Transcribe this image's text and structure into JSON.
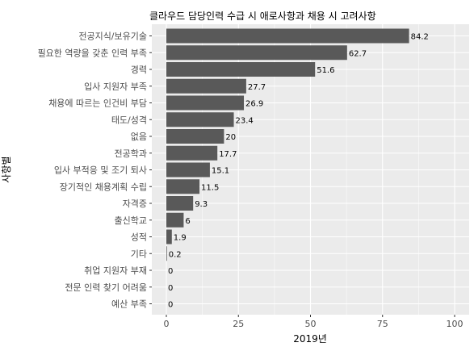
{
  "chart_data": {
    "type": "bar",
    "orientation": "horizontal",
    "title": "클라우드 담당인력 수급 시 애로사항과 채용 시 고려사항",
    "xlabel": "2019년",
    "ylabel": "사항별",
    "xlim": [
      0,
      100
    ],
    "xticks": [
      0,
      25,
      50,
      75,
      100
    ],
    "grid": true,
    "colors": {
      "bar": "#595959",
      "panel": "#ebebeb",
      "grid": "#ffffff"
    },
    "categories": [
      "전공지식/보유기술",
      "필요한 역량을 갖춘 인력 부족",
      "경력",
      "입사 지원자 부족",
      "채용에 따르는 인건비 부담",
      "태도/성격",
      "없음",
      "전공학과",
      "입사 부적응 및 조기 퇴사",
      "장기적인 채용계획 수립",
      "자격증",
      "출신학교",
      "성적",
      "기타",
      "취업 지원자 부재",
      "전문 인력 찾기 어려움",
      "예산 부족"
    ],
    "values": [
      84.2,
      62.7,
      51.6,
      27.7,
      26.9,
      23.4,
      20,
      17.7,
      15.1,
      11.5,
      9.3,
      6,
      1.9,
      0.2,
      0,
      0,
      0
    ],
    "value_labels": [
      "84.2",
      "62.7",
      "51.6",
      "27.7",
      "26.9",
      "23.4",
      "20",
      "17.7",
      "15.1",
      "11.5",
      "9.3",
      "6",
      "1.9",
      "0.2",
      "0",
      "0",
      "0"
    ]
  }
}
